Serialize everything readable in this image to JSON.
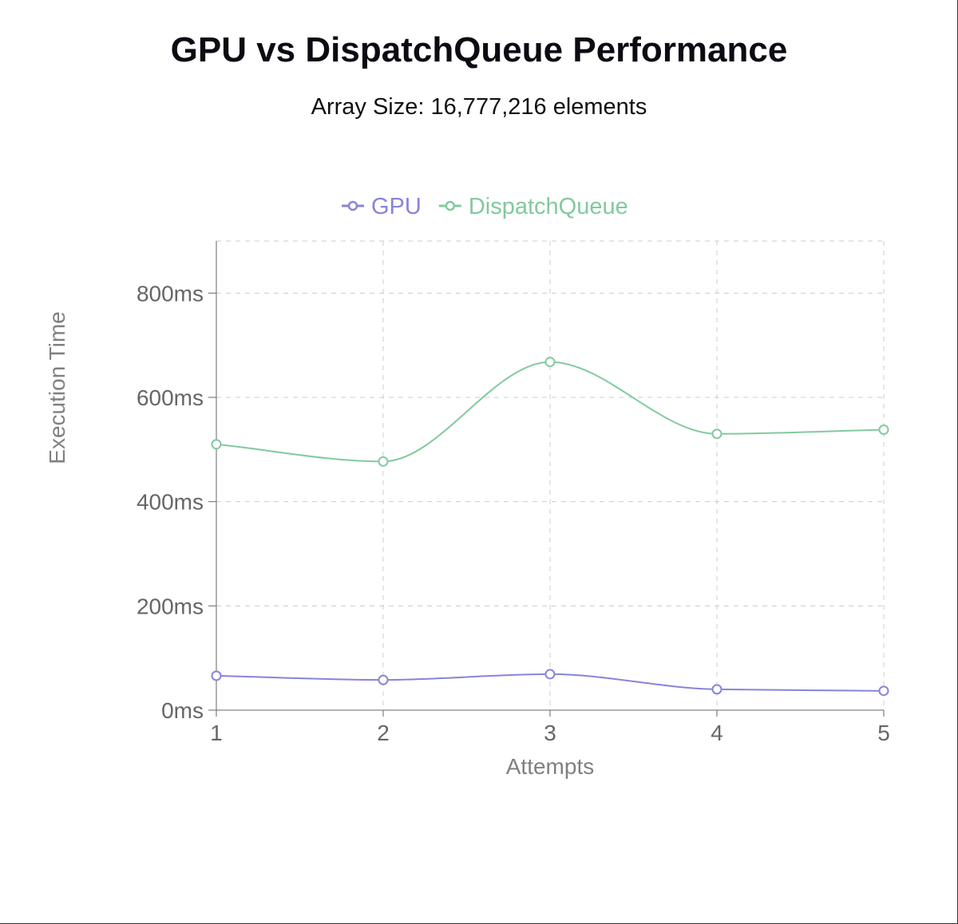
{
  "title": "GPU vs DispatchQueue Performance",
  "subtitle": "Array Size: 16,777,216 elements",
  "chart_data": {
    "type": "line",
    "xlabel": "Attempts",
    "ylabel": "Execution Time",
    "categories": [
      "1",
      "2",
      "3",
      "4",
      "5"
    ],
    "x": [
      1,
      2,
      3,
      4,
      5
    ],
    "yticks": [
      "0ms",
      "200ms",
      "400ms",
      "600ms",
      "800ms"
    ],
    "ytick_values": [
      0,
      200,
      400,
      600,
      800
    ],
    "ylim": [
      0,
      900
    ],
    "grid": true,
    "legend": "top",
    "series": [
      {
        "name": "GPU",
        "color": "#8884d8",
        "values": [
          66,
          58,
          69,
          40,
          37
        ]
      },
      {
        "name": "DispatchQueue",
        "color": "#82ca9d",
        "values": [
          510,
          477,
          668,
          530,
          538
        ]
      }
    ]
  }
}
